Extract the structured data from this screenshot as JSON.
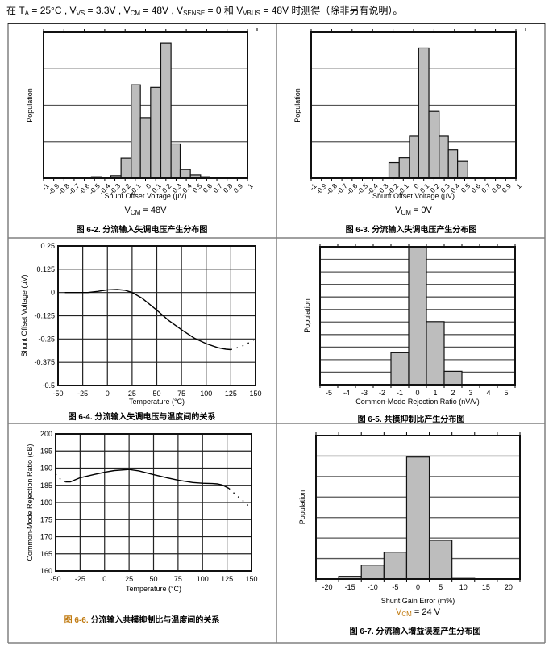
{
  "header": {
    "segments": [
      {
        "t": "在 T"
      },
      {
        "sub": "A"
      },
      {
        "t": " = 25°C , V"
      },
      {
        "sub": "VS"
      },
      {
        "t": " = 3.3V , V"
      },
      {
        "sub": "CM"
      },
      {
        "t": " = 48V , V"
      },
      {
        "sub": "SENSE"
      },
      {
        "t": " = 0 和 V"
      },
      {
        "sub": "VBUS"
      },
      {
        "t": " = 48V 时测得（除非另有说明）。"
      }
    ]
  },
  "colors": {
    "bar_fill": "#bdbdbd",
    "grid": "#777777",
    "frame": "#000000",
    "caption_accent": "#c07a10"
  },
  "chart_data": [
    {
      "id": "fig6-2",
      "type": "bar",
      "title": "图 6-2. 分流输入失调电压产生分布图",
      "caption_num": "图 6-2.",
      "caption_text": " 分流输入失调电压产生分布图",
      "condition": {
        "prefix": "V",
        "sub": "CM",
        "suffix": " = 48V"
      },
      "xlabel": "Shunt Offset Voltage (µV)",
      "ylabel": "Population",
      "xlim": [
        -1,
        1
      ],
      "ylim": [
        0,
        4
      ],
      "grid_lines": 4,
      "xticks": [
        "-1",
        "-0.9",
        "-0.8",
        "-0.7",
        "-0.6",
        "-0.5",
        "-0.4",
        "-0.3",
        "-0.2",
        "-0.1",
        "0",
        "0.1",
        "0.2",
        "0.3",
        "0.4",
        "0.5",
        "0.6",
        "0.7",
        "0.8",
        "0.9",
        "1"
      ],
      "bins": [
        {
          "x0": -0.53,
          "x1": -0.43,
          "value": 0.04
        },
        {
          "x0": -0.34,
          "x1": -0.24,
          "value": 0.07
        },
        {
          "x0": -0.24,
          "x1": -0.14,
          "value": 0.55
        },
        {
          "x0": -0.14,
          "x1": -0.05,
          "value": 2.56
        },
        {
          "x0": -0.05,
          "x1": 0.05,
          "value": 1.66
        },
        {
          "x0": 0.05,
          "x1": 0.15,
          "value": 2.49
        },
        {
          "x0": 0.15,
          "x1": 0.25,
          "value": 3.71
        },
        {
          "x0": 0.25,
          "x1": 0.34,
          "value": 0.94
        },
        {
          "x0": 0.34,
          "x1": 0.44,
          "value": 0.24
        },
        {
          "x0": 0.44,
          "x1": 0.54,
          "value": 0.09
        },
        {
          "x0": 0.54,
          "x1": 0.63,
          "value": 0.04
        }
      ]
    },
    {
      "id": "fig6-3",
      "type": "bar",
      "title": "图 6-3. 分流输入失调电压产生分布图",
      "caption_num": "图 6-3.",
      "caption_text": " 分流输入失调电压产生分布图",
      "condition": {
        "prefix": "V",
        "sub": "CM",
        "suffix": " = 0V"
      },
      "xlabel": "Shunt Offset Voltage (µV)",
      "ylabel": "Population",
      "xlim": [
        -1,
        1
      ],
      "ylim": [
        0,
        4
      ],
      "grid_lines": 4,
      "xticks": [
        "-1",
        "-0.9",
        "-0.8",
        "-0.7",
        "-0.6",
        "-0.5",
        "-0.4",
        "-0.3",
        "-0.2",
        "-0.1",
        "0",
        "0.1",
        "0.2",
        "0.3",
        "0.4",
        "0.5",
        "0.6",
        "0.7",
        "0.8",
        "0.9",
        "1"
      ],
      "bins": [
        {
          "x0": -0.24,
          "x1": -0.14,
          "value": 0.43
        },
        {
          "x0": -0.14,
          "x1": -0.04,
          "value": 0.56
        },
        {
          "x0": -0.04,
          "x1": 0.05,
          "value": 1.15
        },
        {
          "x0": 0.05,
          "x1": 0.15,
          "value": 3.57
        },
        {
          "x0": 0.15,
          "x1": 0.25,
          "value": 1.83
        },
        {
          "x0": 0.25,
          "x1": 0.34,
          "value": 1.15
        },
        {
          "x0": 0.34,
          "x1": 0.43,
          "value": 0.78
        },
        {
          "x0": 0.43,
          "x1": 0.53,
          "value": 0.46
        }
      ]
    },
    {
      "id": "fig6-4",
      "type": "line",
      "title": "图 6-4. 分流输入失调电压与温度间的关系",
      "caption_num": "图 6-4.",
      "caption_text": " 分流输入失调电压与温度间的关系",
      "xlabel": "Temperature (°C)",
      "ylabel": "Shunt Offset Voltage (µV)",
      "xlim": [
        -50,
        150
      ],
      "ylim": [
        -0.5,
        0.25
      ],
      "xticks": [
        -50,
        -25,
        0,
        25,
        50,
        75,
        100,
        125,
        150
      ],
      "yticks": [
        0.25,
        0.125,
        0,
        -0.125,
        -0.25,
        -0.375,
        -0.5
      ],
      "series": [
        {
          "name": "measured",
          "style": "solid",
          "x": [
            -43,
            -30,
            -20,
            -10,
            0,
            10,
            18,
            25,
            35,
            50,
            62,
            75,
            88,
            100,
            112,
            120,
            125
          ],
          "y": [
            0,
            0,
            0,
            0.006,
            0.014,
            0.016,
            0.012,
            0,
            -0.03,
            -0.095,
            -0.15,
            -0.2,
            -0.245,
            -0.275,
            -0.297,
            -0.305,
            -0.307
          ]
        },
        {
          "name": "extrapolated",
          "style": "dotted",
          "x": [
            125,
            133,
            140,
            148
          ],
          "y": [
            -0.307,
            -0.295,
            -0.28,
            -0.255
          ]
        }
      ]
    },
    {
      "id": "fig6-5",
      "type": "bar",
      "title": "图 6-5. 共模抑制比产生分布图",
      "caption_num": "图 6-5.",
      "caption_text": " 共模抑制比产生分布图",
      "xlabel": "Common-Mode Rejection Ratio (nV/V)",
      "ylabel": "Population",
      "xlim": [
        -5.5,
        5.5
      ],
      "ylim": [
        0,
        11
      ],
      "grid_lines": 11,
      "categories": [
        "-5",
        "-4",
        "-3",
        "-2",
        "-1",
        "0",
        "1",
        "2",
        "3",
        "4",
        "5"
      ],
      "values": [
        0,
        0,
        0,
        0,
        2.55,
        11,
        5.03,
        1.07,
        0,
        0,
        0
      ]
    },
    {
      "id": "fig6-6",
      "type": "line",
      "title": "图 6-6. 分流输入共模抑制比与温度间的关系",
      "caption_num": "图 6-6.",
      "caption_text": " 分流输入共模抑制比与温度间的关系",
      "xlabel": "Temperature (°C)",
      "ylabel": "Common-Mode Rejection Ratio (dB)",
      "xlim": [
        -50,
        150
      ],
      "ylim": [
        160,
        200
      ],
      "xticks": [
        -50,
        -25,
        0,
        25,
        50,
        75,
        100,
        125,
        150
      ],
      "yticks": [
        200,
        195,
        190,
        185,
        180,
        175,
        170,
        165,
        160
      ],
      "series": [
        {
          "name": "extrapolated-low",
          "style": "dotted",
          "x": [
            -50,
            -45,
            -40
          ],
          "y": [
            188.3,
            186.7,
            186
          ]
        },
        {
          "name": "measured",
          "style": "solid",
          "x": [
            -40,
            -35,
            -25,
            -10,
            0,
            10,
            25,
            35,
            50,
            65,
            75,
            90,
            100,
            110,
            115,
            120,
            127
          ],
          "y": [
            186,
            186,
            187.2,
            188.2,
            188.8,
            189.3,
            189.6,
            189.2,
            188.1,
            187.1,
            186.5,
            185.8,
            185.6,
            185.5,
            185.4,
            185.1,
            184.1
          ]
        },
        {
          "name": "extrapolated-high",
          "style": "dotted",
          "x": [
            127,
            133,
            140,
            147
          ],
          "y": [
            184.1,
            182.5,
            180.8,
            179
          ]
        }
      ]
    },
    {
      "id": "fig6-7",
      "type": "bar",
      "title": "图 6-7. 分流输入增益误差产生分布图",
      "caption_num": "图 6-7.",
      "caption_text": " 分流输入增益误差产生分布图",
      "condition": {
        "prefix": "V",
        "sub": "CM",
        "suffix": " = 24 V"
      },
      "xlabel": "Shunt Gain Error (m%)",
      "ylabel": "Population",
      "xlim": [
        -22.5,
        22.5
      ],
      "ylim": [
        0,
        7
      ],
      "grid_lines": 7,
      "categories": [
        "-20",
        "-15",
        "-10",
        "-5",
        "0",
        "5",
        "10",
        "15",
        "20"
      ],
      "values": [
        0,
        0.13,
        0.68,
        1.31,
        5.95,
        1.89,
        0.03,
        0,
        0
      ]
    }
  ]
}
